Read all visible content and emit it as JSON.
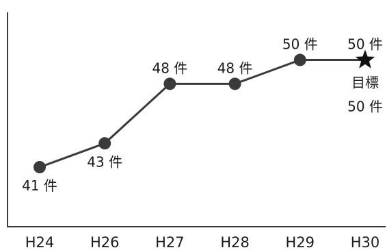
{
  "chart_data": {
    "type": "line",
    "categories": [
      "H24",
      "H26",
      "H27",
      "H28",
      "H29",
      "H30"
    ],
    "values": [
      41,
      43,
      48,
      48,
      50,
      50
    ],
    "data_labels": [
      "41 件",
      "43 件",
      "48 件",
      "48 件",
      "50 件",
      "50 件"
    ],
    "target": {
      "category": "H30",
      "value": 50,
      "marker": "star",
      "label_line1": "目標",
      "label_line2": "50 件"
    },
    "ylim": [
      36,
      54
    ],
    "grid": false,
    "line_color": "#3a3a3a",
    "marker_color": "#3a3a3a",
    "target_color": "#111111"
  }
}
